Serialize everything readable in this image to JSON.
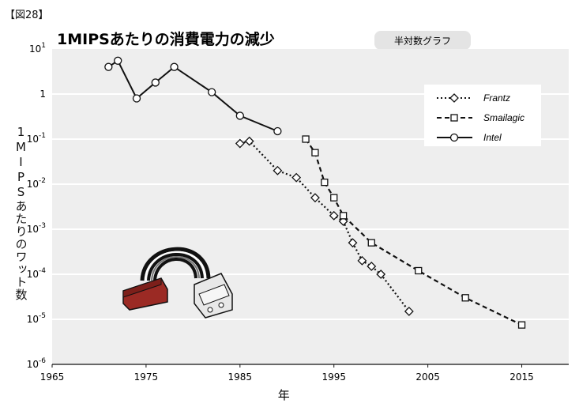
{
  "figure_label": "【図28】",
  "chart_data": {
    "type": "line",
    "title": "1MIPSあたりの消費電力の減少",
    "scale_tag": "半対数グラフ",
    "xlabel": "年",
    "ylabel": "1MIPSあたりのワット数",
    "xlim": [
      1965,
      2020
    ],
    "ylim": [
      1e-06,
      10
    ],
    "yscale": "log",
    "grid": true,
    "x_ticks": [
      1965,
      1975,
      1985,
      1995,
      2005,
      2015
    ],
    "y_ticks": [
      {
        "value": 10,
        "base": "10",
        "exp": "1"
      },
      {
        "value": 1,
        "base": "1",
        "exp": ""
      },
      {
        "value": 0.1,
        "base": "10",
        "exp": "-1"
      },
      {
        "value": 0.01,
        "base": "10",
        "exp": "-2"
      },
      {
        "value": 0.001,
        "base": "10",
        "exp": "-3"
      },
      {
        "value": 0.0001,
        "base": "10",
        "exp": "-4"
      },
      {
        "value": 1e-05,
        "base": "10",
        "exp": "-5"
      },
      {
        "value": 1e-06,
        "base": "10",
        "exp": "-6"
      }
    ],
    "legend_position": "top-right",
    "series": [
      {
        "name": "Frantz",
        "marker": "diamond",
        "line": "dotted",
        "points": [
          [
            1985,
            0.08
          ],
          [
            1986,
            0.09
          ],
          [
            1989,
            0.02
          ],
          [
            1991,
            0.014
          ],
          [
            1993,
            0.005
          ],
          [
            1995,
            0.002
          ],
          [
            1996,
            0.0015
          ],
          [
            1997,
            0.0005
          ],
          [
            1998,
            0.0002
          ],
          [
            1999,
            0.00015
          ],
          [
            2000,
            0.0001
          ],
          [
            2003,
            1.5e-05
          ]
        ]
      },
      {
        "name": "Smailagic",
        "marker": "square",
        "line": "dashed",
        "points": [
          [
            1992,
            0.1
          ],
          [
            1993,
            0.05
          ],
          [
            1994,
            0.011
          ],
          [
            1995,
            0.005
          ],
          [
            1996,
            0.002
          ],
          [
            1999,
            0.0005
          ],
          [
            2004,
            0.00012
          ],
          [
            2009,
            3e-05
          ],
          [
            2015,
            7.5e-06
          ]
        ]
      },
      {
        "name": "Intel",
        "marker": "circle",
        "line": "solid",
        "points": [
          [
            1971,
            4
          ],
          [
            1972,
            5.5
          ],
          [
            1974,
            0.8
          ],
          [
            1976,
            1.8
          ],
          [
            1978,
            4
          ],
          [
            1982,
            1.1
          ],
          [
            1985,
            0.33
          ],
          [
            1989,
            0.15
          ]
        ]
      }
    ]
  },
  "colors": {
    "plot_bg": "#eeeeee",
    "tab_bg": "#e4e4e4",
    "grid": "#ffffff",
    "ink": "#111111",
    "connector_red": "#9b2a24",
    "connector_white": "#e8e8e8"
  },
  "illustration": "power-connector-cable"
}
